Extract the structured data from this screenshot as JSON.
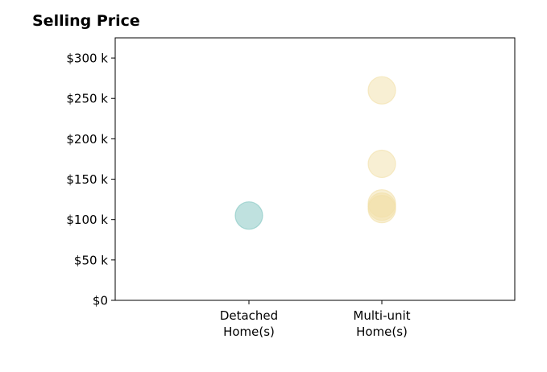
{
  "chart_data": {
    "type": "scatter",
    "title": "Selling Price",
    "xlabel": "",
    "ylabel": "",
    "categories": [
      "Detached\nHome(s)",
      "Multi-unit\nHome(s)"
    ],
    "ylim": [
      0,
      325000
    ],
    "yticks": [
      0,
      50000,
      100000,
      150000,
      200000,
      250000,
      300000
    ],
    "ytick_labels": [
      "$0",
      "$50 k",
      "$100 k",
      "$150 k",
      "$200 k",
      "$250 k",
      "$300 k"
    ],
    "grid": false,
    "legend": false,
    "colors": {
      "Detached\nHome(s)": "#7fc4bf",
      "Multi-unit\nHome(s)": "#f2dfa7"
    },
    "points": [
      {
        "category": "Detached\nHome(s)",
        "y": 105000
      },
      {
        "category": "Multi-unit\nHome(s)",
        "y": 260000
      },
      {
        "category": "Multi-unit\nHome(s)",
        "y": 169000
      },
      {
        "category": "Multi-unit\nHome(s)",
        "y": 120000
      },
      {
        "category": "Multi-unit\nHome(s)",
        "y": 116000
      },
      {
        "category": "Multi-unit\nHome(s)",
        "y": 113000
      }
    ]
  }
}
